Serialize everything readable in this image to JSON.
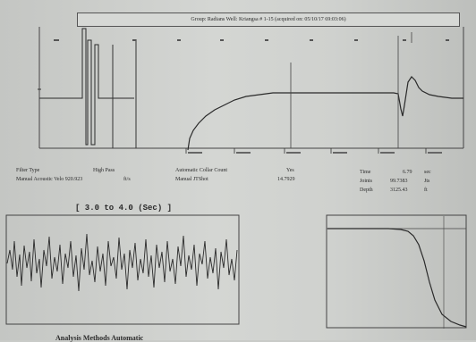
{
  "header": {
    "title": "Group: Radians   Well: Kriangsa # 1-15 (acquired on: 05/10/17 69:03:06)"
  },
  "log_info": {
    "filter_type_label": "Filter Type",
    "filter_type_value": "High Pass",
    "manual_velocity_label": "Manual Acoustic Velo 920.923",
    "manual_velocity_unit": "ft/s",
    "collar_count_label": "Automatic Collar Count",
    "collar_count_value": "Yes",
    "manual_jt_label": "Manual JTShot",
    "manual_jt_value": "14.7929",
    "time_label": "Time",
    "time_value": "6.79",
    "time_unit": "sec",
    "joints_label": "Joints",
    "joints_value": "99.7383",
    "joints_unit": "Jts",
    "depth_label": "Depth",
    "depth_value": "3125.43",
    "depth_unit": "ft"
  },
  "range": {
    "label": "[ 3.0  to  4.0 (Sec) ]"
  },
  "footer": {
    "label": "Analysis Methods   Automatic"
  },
  "colors": {
    "background": "#c9cbc8",
    "ink": "#2a2a2a"
  }
}
